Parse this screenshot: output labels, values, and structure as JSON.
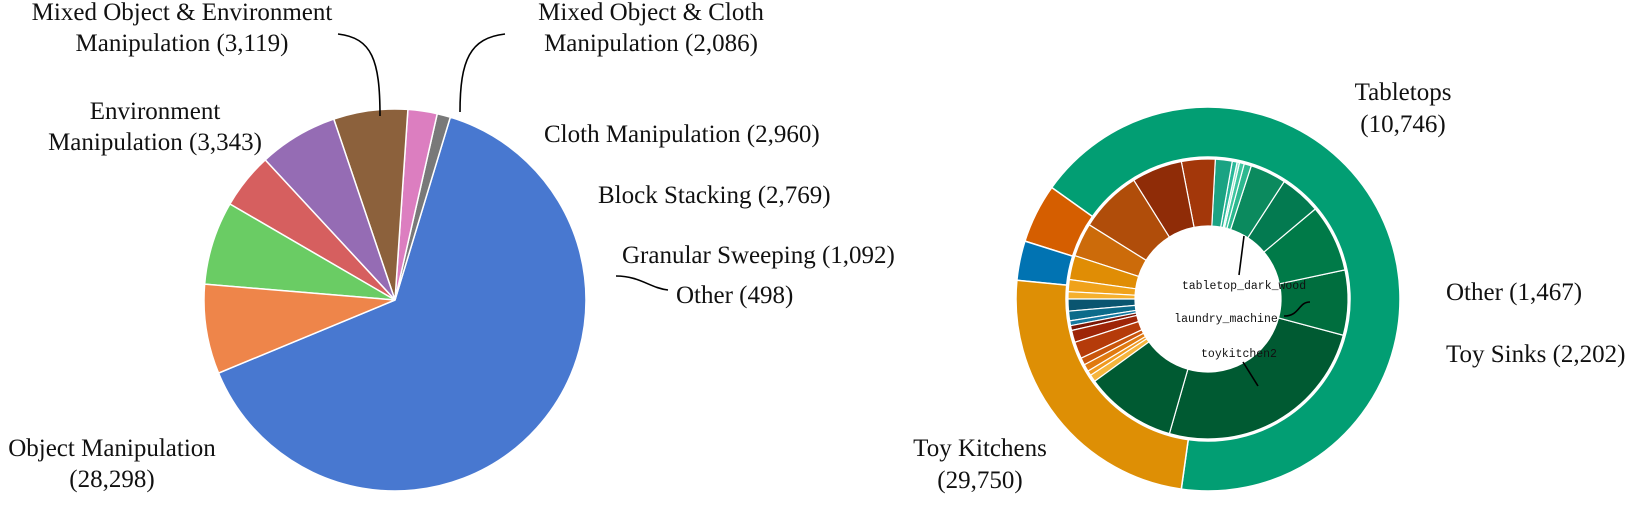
{
  "chart_data": [
    {
      "type": "pie",
      "slices": [
        {
          "label": "Object Manipulation",
          "value": 28298,
          "color": "#4878d0",
          "line1": "Object Manipulation",
          "line2": "(28,298)"
        },
        {
          "label": "Other",
          "value": 498,
          "color": "#797979",
          "line1": "Other (498)",
          "line2": ""
        },
        {
          "label": "Granular Sweeping",
          "value": 1092,
          "color": "#dc7ec0",
          "line1": "Granular Sweeping (1,092)",
          "line2": ""
        },
        {
          "label": "Block Stacking",
          "value": 2769,
          "color": "#8c613c",
          "line1": "Block Stacking (2,769)",
          "line2": ""
        },
        {
          "label": "Cloth Manipulation",
          "value": 2960,
          "color": "#956cb4",
          "line1": "Cloth Manipulation (2,960)",
          "line2": ""
        },
        {
          "label": "Mixed Object & Cloth Manipulation",
          "value": 2086,
          "color": "#d65f5f",
          "line1": "Mixed Object & Cloth",
          "line2": "Manipulation (2,086)"
        },
        {
          "label": "Mixed Object & Environment Manipulation",
          "value": 3119,
          "color": "#6acc64",
          "line1": "Mixed Object & Environment",
          "line2": "Manipulation (3,119)"
        },
        {
          "label": "Environment Manipulation",
          "value": 3343,
          "color": "#ee854a",
          "line1": "Environment",
          "line2": "Manipulation (3,343)"
        }
      ]
    },
    {
      "type": "pie",
      "outer": [
        {
          "label": "Toy Kitchens",
          "value": 29750,
          "color": "#029e73",
          "line1": "Toy Kitchens",
          "line2": "(29,750)"
        },
        {
          "label": "Toy Sinks",
          "value": 2202,
          "color": "#d55e00",
          "line1": "Toy Sinks (2,202)",
          "line2": ""
        },
        {
          "label": "Other",
          "value": 1467,
          "color": "#0173b2",
          "line1": "Other (1,467)",
          "line2": ""
        },
        {
          "label": "Tabletops",
          "value": 10746,
          "color": "#de8f05",
          "line1": "Tabletops",
          "line2": "(10,746)"
        }
      ],
      "inner_labels": [
        "tabletop_dark_wood",
        "laundry_machine",
        "toykitchen2"
      ]
    }
  ]
}
